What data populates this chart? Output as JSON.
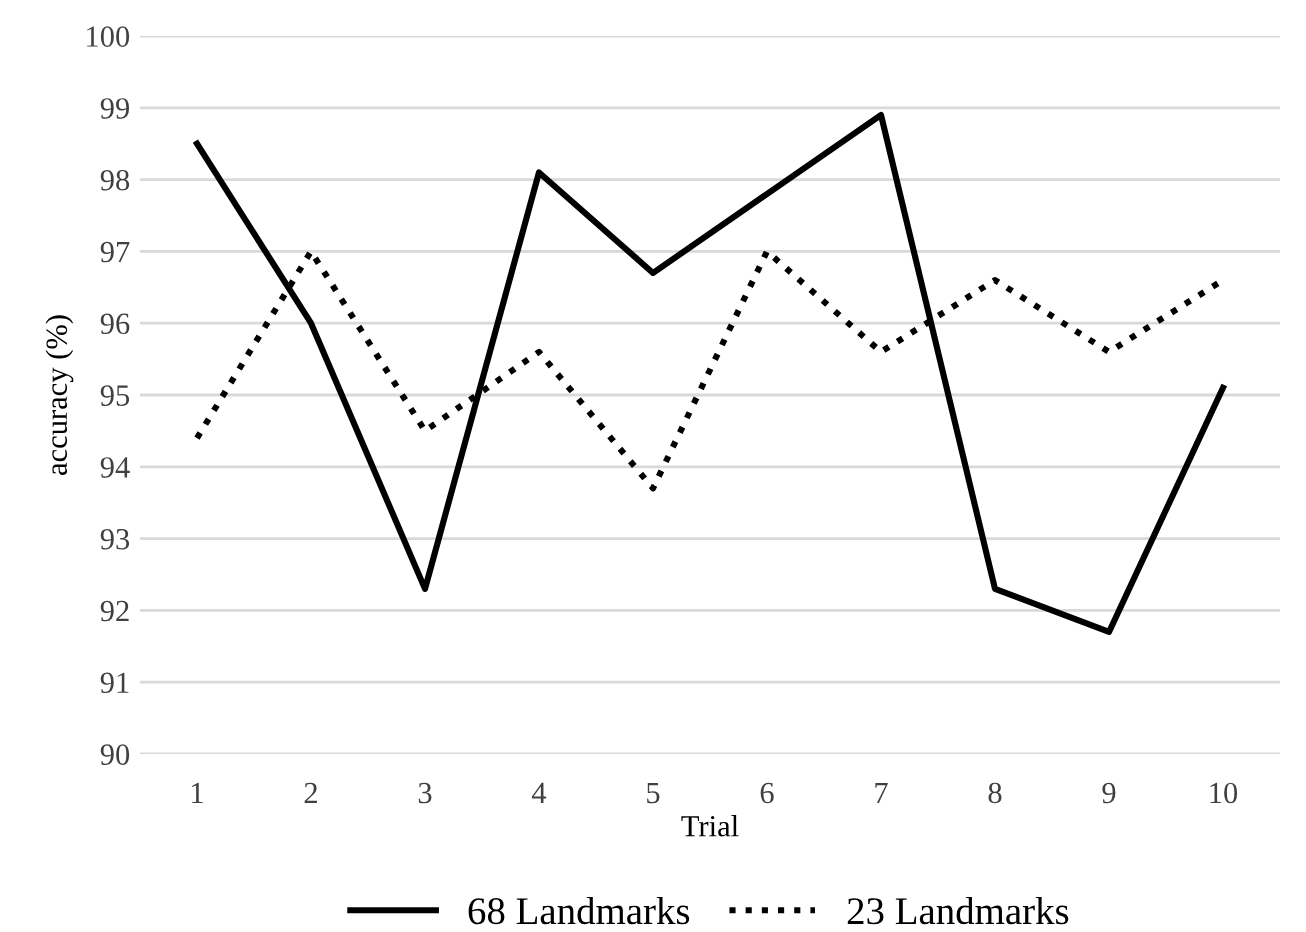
{
  "chart_data": {
    "type": "line",
    "xlabel": "Trial",
    "ylabel": "accuracy (%)",
    "categories": [
      "1",
      "2",
      "3",
      "4",
      "5",
      "6",
      "7",
      "8",
      "9",
      "10"
    ],
    "series": [
      {
        "name": "68 Landmarks",
        "color": "#000000",
        "line_style": "solid",
        "values": [
          98.5,
          96.0,
          92.3,
          98.1,
          96.7,
          97.8,
          98.9,
          92.3,
          91.7,
          95.1
        ]
      },
      {
        "name": "23 Landmarks",
        "color": "#000000",
        "line_style": "dotted",
        "values": [
          94.4,
          97.0,
          94.5,
          95.6,
          93.7,
          97.0,
          95.6,
          96.6,
          95.6,
          96.6
        ]
      }
    ],
    "ylim": [
      90,
      100
    ],
    "yticks": [
      90,
      91,
      92,
      93,
      94,
      95,
      96,
      97,
      98,
      99,
      100
    ],
    "grid": "y",
    "legend": "bottom",
    "marker": "none"
  }
}
